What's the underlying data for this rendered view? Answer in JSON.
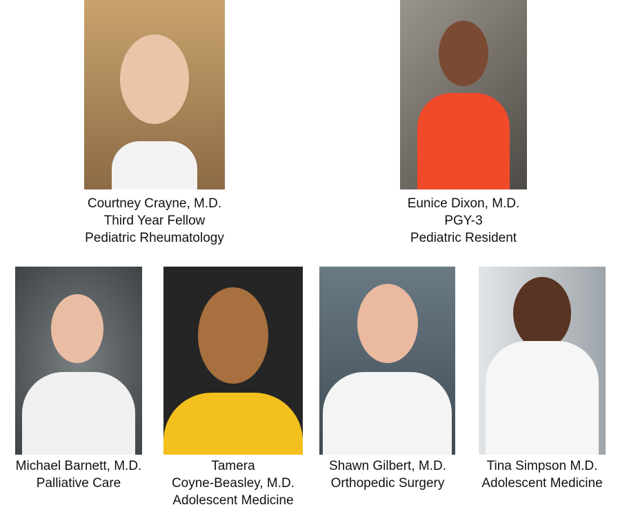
{
  "people": [
    {
      "name": "Courtney Crayne, M.D.",
      "title": "Third Year Fellow",
      "dept": "Pediatric Rheumatology",
      "bg": "#b08a5c"
    },
    {
      "name": "Eunice Dixon, M.D.",
      "title": "PGY-3",
      "dept": "Pediatric Resident",
      "bg": "#6e6a62"
    },
    {
      "name": "Michael Barnett, M.D.",
      "title": "Palliative Care",
      "bg": "#555a5e"
    },
    {
      "name": "Tamera",
      "title": "Coyne-Beasley, M.D.",
      "dept": "Adolescent Medicine",
      "bg": "#2a2a2a"
    },
    {
      "name": "Shawn Gilbert, M.D.",
      "title": "Orthopedic Surgery",
      "bg": "#4f5f6a"
    },
    {
      "name": "Tina Simpson M.D.",
      "title": "Adolescent Medicine",
      "bg": "#c9cdd0"
    }
  ]
}
